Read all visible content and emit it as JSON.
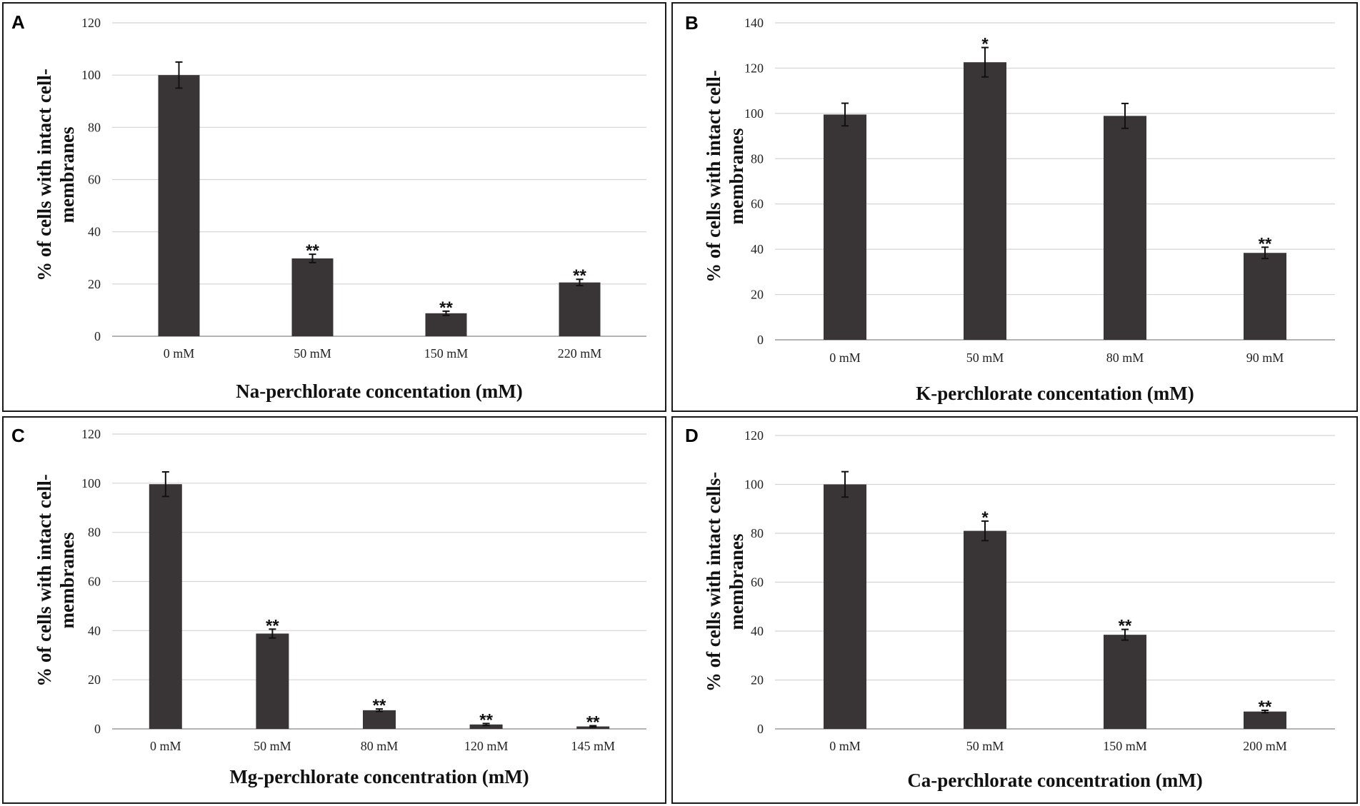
{
  "colors": {
    "bar": "#393536",
    "grid": "#d4d4d4",
    "error": "#111111"
  },
  "chart_data": [
    {
      "panel": "A",
      "type": "bar",
      "categories": [
        "0 mM",
        "50 mM",
        "150 mM",
        "220 mM"
      ],
      "values": [
        100,
        29.8,
        8.8,
        20.6
      ],
      "errors": [
        5,
        1.6,
        0.8,
        1.2
      ],
      "significance": [
        "",
        "**",
        "**",
        "**"
      ],
      "xlabel": "Na-perchlorate concentation (mM)",
      "ylabel_lines": [
        "% of cells with intact cell-",
        "membranes"
      ],
      "ylim": [
        0,
        120
      ],
      "yticks": [
        "0",
        "20",
        "40",
        "60",
        "80",
        "100",
        "120"
      ],
      "grid": true
    },
    {
      "panel": "B",
      "type": "bar",
      "categories": [
        "0 mM",
        "50 mM",
        "80 mM",
        "90 mM"
      ],
      "values": [
        99.5,
        122.6,
        98.9,
        38.4
      ],
      "errors": [
        5,
        6.5,
        5.5,
        2.5
      ],
      "significance": [
        "",
        "*",
        "",
        "**"
      ],
      "xlabel": "K-perchlorate concentation (mM)",
      "ylabel_lines": [
        "% of cells with intact cell-",
        "membranes"
      ],
      "ylim": [
        0,
        140
      ],
      "yticks": [
        "0",
        "20",
        "40",
        "60",
        "80",
        "100",
        "120",
        "140"
      ],
      "grid": true
    },
    {
      "panel": "C",
      "type": "bar",
      "categories": [
        "0 mM",
        "50 mM",
        "80 mM",
        "120 mM",
        "145 mM"
      ],
      "values": [
        99.6,
        38.8,
        7.6,
        1.8,
        1
      ],
      "errors": [
        5,
        1.8,
        0.5,
        0.4,
        0.3
      ],
      "significance": [
        "",
        "**",
        "**",
        "**",
        "**"
      ],
      "xlabel": "Mg-perchlorate concentration (mM)",
      "ylabel_lines": [
        "% of cells with intact cell-",
        "membranes"
      ],
      "ylim": [
        0,
        120
      ],
      "yticks": [
        "0",
        "20",
        "40",
        "60",
        "80",
        "100",
        "120"
      ],
      "grid": true
    },
    {
      "panel": "D",
      "type": "bar",
      "categories": [
        "0 mM",
        "50 mM",
        "150 mM",
        "200 mM"
      ],
      "values": [
        100,
        81,
        38.5,
        7.1
      ],
      "errors": [
        5.2,
        4,
        2.2,
        0.5
      ],
      "significance": [
        "",
        "*",
        "**",
        "**"
      ],
      "xlabel": "Ca-perchlorate concentration (mM)",
      "ylabel_lines": [
        "% of cells with intact cells-",
        "membranes"
      ],
      "ylim": [
        0,
        120
      ],
      "yticks": [
        "0",
        "20",
        "40",
        "60",
        "80",
        "100",
        "120"
      ],
      "grid": true
    }
  ]
}
